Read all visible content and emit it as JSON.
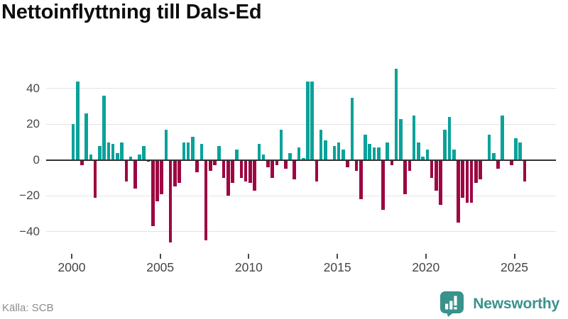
{
  "page": {
    "title": "Nettoinflyttning till Dals-Ed",
    "source": "Källa: SCB"
  },
  "brand": {
    "name": "Newsworthy",
    "icon": "newsworthy-speech-bubble-bar-chart-icon"
  },
  "colors": {
    "positive_bar": "#0aa29a",
    "negative_bar": "#9d0642",
    "brand_teal": "#39928b",
    "gridline": "#e3e3e3",
    "zero_axis": "#333333",
    "tick_label": "#474747",
    "source_text": "#8c8c8c"
  },
  "chart_data": {
    "type": "bar",
    "title": "Nettoinflyttning till Dals-Ed",
    "frequency": "quarterly",
    "x_start": "2000-Q1",
    "x_end": "2025-Q3",
    "values": [
      20,
      44,
      -3,
      26,
      3,
      -21,
      8,
      36,
      10,
      9,
      4,
      10,
      -12,
      2,
      -16,
      3,
      8,
      -1,
      -37,
      -23,
      -19,
      17,
      -46,
      -15,
      -13,
      10,
      10,
      13,
      -7,
      9,
      -45,
      -6,
      -3,
      8,
      -10,
      -20,
      -13,
      6,
      -10,
      -12,
      -13,
      -17,
      9,
      3,
      -4,
      -10,
      -3,
      17,
      -5,
      4,
      -11,
      7,
      1,
      44,
      44,
      -12,
      17,
      11,
      0,
      8,
      10,
      6,
      -4,
      35,
      -6,
      -22,
      14,
      9,
      7,
      7,
      -28,
      10,
      -3,
      51,
      23,
      -19,
      -6,
      25,
      10,
      2,
      6,
      -10,
      -17,
      -25,
      17,
      24,
      6,
      -35,
      -21,
      -24,
      -24,
      -13,
      -11,
      0,
      14,
      4,
      -5,
      25,
      0,
      -3,
      12,
      10,
      -12
    ],
    "xticks": [
      "2000",
      "2005",
      "2010",
      "2015",
      "2020",
      "2025"
    ],
    "ytick_values": [
      40,
      20,
      0,
      -20,
      -40
    ],
    "ytick_labels": [
      "40",
      "20",
      "0",
      "−20",
      "−40"
    ],
    "ylim": [
      -52,
      56
    ],
    "grid": true,
    "legend": "none",
    "positive_color": "#0aa29a",
    "negative_color": "#9d0642"
  }
}
